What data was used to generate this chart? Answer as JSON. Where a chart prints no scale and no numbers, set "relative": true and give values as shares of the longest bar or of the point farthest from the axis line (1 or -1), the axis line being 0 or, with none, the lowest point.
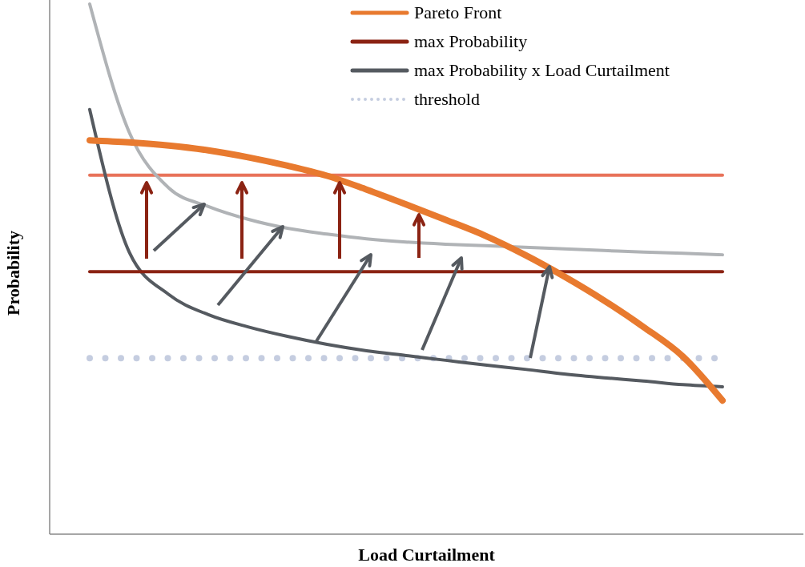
{
  "chart_data": {
    "type": "line",
    "relative": true,
    "xlabel": "Load Curtailment",
    "ylabel": "Probability",
    "legend": "top right",
    "categories": [
      null,
      null,
      null,
      null,
      null,
      null,
      null,
      null,
      null,
      null,
      null,
      null,
      null,
      null,
      null,
      null,
      null
    ],
    "series": [
      {
        "name": "Pareto Front",
        "color": "#e87a2f",
        "values": [
          0.743,
          0.739,
          0.733,
          0.724,
          0.711,
          0.695,
          0.676,
          0.65,
          0.622,
          0.593,
          0.563,
          0.527,
          0.486,
          0.441,
          0.391,
          0.335,
          0.252
        ]
      },
      {
        "name": "max Probability",
        "color": "#8b2313",
        "values": [
          0.495,
          0.495,
          0.495,
          0.495,
          0.495,
          0.495,
          0.495,
          0.495,
          0.495,
          0.495,
          0.495,
          0.495,
          0.495,
          0.495,
          0.495,
          0.495,
          0.495
        ]
      },
      {
        "name": "max Probability x Load Curtailment",
        "color": "#555a60",
        "values": [
          0.801,
          0.532,
          0.452,
          0.414,
          0.391,
          0.373,
          0.358,
          0.346,
          0.337,
          0.328,
          0.319,
          0.311,
          0.302,
          0.295,
          0.289,
          0.282,
          0.278
        ]
      },
      {
        "name": "threshold",
        "color": "#c5cde0",
        "line_style": "dotted",
        "values": [
          0.332,
          0.332,
          0.332,
          0.332,
          0.332,
          0.332,
          0.332,
          0.332,
          0.332,
          0.332,
          0.332,
          0.332,
          0.332,
          0.332,
          0.332,
          0.332,
          0.332
        ]
      },
      {
        "color": "#b0b3b6",
        "values": [
          1.0,
          0.758,
          0.653,
          0.618,
          0.594,
          0.577,
          0.566,
          0.557,
          0.551,
          0.547,
          0.544,
          0.541,
          0.538,
          0.535,
          0.532,
          0.53,
          0.527
        ]
      },
      {
        "color": "#e8735a",
        "values": [
          0.677,
          0.677,
          0.677,
          0.677,
          0.677,
          0.677,
          0.677,
          0.677,
          0.677,
          0.677,
          0.677,
          0.677,
          0.677,
          0.677,
          0.677,
          0.677,
          0.677
        ]
      }
    ]
  }
}
